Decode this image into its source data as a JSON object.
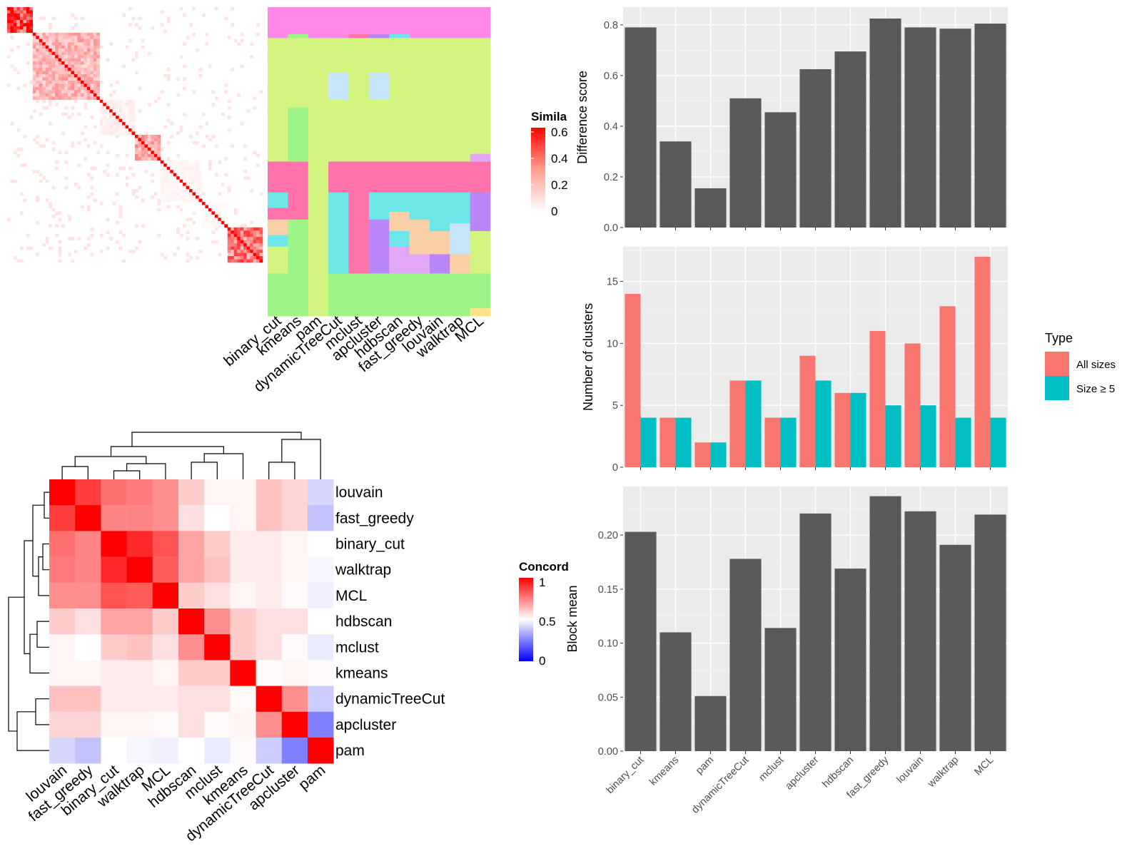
{
  "palette": {
    "panel_bg": "#EBEBEB",
    "grid": "#FFFFFF",
    "bar_dark": "#595959",
    "all_sizes": "#F8766D",
    "size_ge5": "#00BFC4",
    "heat_high": "#FF0000",
    "heat_low": "#0000FF"
  },
  "chart_data": [
    {
      "id": "similarity_heatmap",
      "type": "heatmap",
      "legend_title": "Simila",
      "legend_ticks": [
        "0.6",
        "0.4",
        "0.2",
        "0"
      ],
      "legend_range": [
        0,
        0.62
      ],
      "n_cells": 80,
      "blocks": [
        {
          "start": 0,
          "end": 8,
          "level": 0.55
        },
        {
          "start": 8,
          "end": 29,
          "level": 0.22
        },
        {
          "start": 29,
          "end": 40,
          "level": 0.05
        },
        {
          "start": 40,
          "end": 48,
          "level": 0.25
        },
        {
          "start": 48,
          "end": 61,
          "level": 0.03
        },
        {
          "start": 61,
          "end": 69,
          "level": 0.02
        },
        {
          "start": 69,
          "end": 80,
          "level": 0.4
        }
      ],
      "diagonal": 0.62
    },
    {
      "id": "cluster_assignment",
      "type": "heatmap",
      "x_labels": [
        "binary_cut",
        "kmeans",
        "pam",
        "dynamicTreeCut",
        "mclust",
        "apcluster",
        "hdbscan",
        "fast_greedy",
        "louvain",
        "walktrap",
        "MCL"
      ],
      "cluster_colors": [
        "#FF88E8",
        "#D3F57F",
        "#9EF587",
        "#FF72AA",
        "#6CE6E6",
        "#C6E5FA",
        "#B985F7",
        "#F9CFA8",
        "#E1A8F7",
        "#FFE58A"
      ]
    },
    {
      "id": "difference_score",
      "type": "bar",
      "categories": [
        "binary_cut",
        "kmeans",
        "pam",
        "dynamicTreeCut",
        "mclust",
        "apcluster",
        "hdbscan",
        "fast_greedy",
        "louvain",
        "walktrap",
        "MCL"
      ],
      "values": [
        0.79,
        0.34,
        0.155,
        0.51,
        0.455,
        0.625,
        0.695,
        0.825,
        0.79,
        0.785,
        0.805
      ],
      "ylabel": "Difference score",
      "ylim": [
        0,
        0.87
      ],
      "yticks": [
        0.0,
        0.2,
        0.4,
        0.6,
        0.8
      ],
      "ytick_labels": [
        "0.0",
        "0.2",
        "0.4",
        "0.6",
        "0.8"
      ]
    },
    {
      "id": "number_of_clusters",
      "type": "bar",
      "categories": [
        "binary_cut",
        "kmeans",
        "pam",
        "dynamicTreeCut",
        "mclust",
        "apcluster",
        "hdbscan",
        "fast_greedy",
        "louvain",
        "walktrap",
        "MCL"
      ],
      "series": [
        {
          "name": "All sizes",
          "values": [
            14,
            4,
            2,
            7,
            4,
            9,
            6,
            11,
            10,
            13,
            17
          ]
        },
        {
          "name": "Size ≥ 5",
          "values": [
            4,
            4,
            2,
            7,
            4,
            7,
            6,
            5,
            5,
            4,
            4
          ]
        }
      ],
      "ylabel": "Number of clusters",
      "ylim": [
        0,
        17.8
      ],
      "yticks": [
        0,
        5,
        10,
        15
      ],
      "ytick_labels": [
        "0",
        "5",
        "10",
        "15"
      ],
      "legend": {
        "title": "Type",
        "position": "right"
      }
    },
    {
      "id": "block_mean",
      "type": "bar",
      "categories": [
        "binary_cut",
        "kmeans",
        "pam",
        "dynamicTreeCut",
        "mclust",
        "apcluster",
        "hdbscan",
        "fast_greedy",
        "louvain",
        "walktrap",
        "MCL"
      ],
      "values": [
        0.203,
        0.11,
        0.051,
        0.178,
        0.114,
        0.22,
        0.169,
        0.236,
        0.222,
        0.191,
        0.219
      ],
      "ylabel": "Block mean",
      "ylim": [
        0,
        0.245
      ],
      "yticks": [
        0.0,
        0.05,
        0.1,
        0.15,
        0.2
      ],
      "ytick_labels": [
        "0.00",
        "0.05",
        "0.10",
        "0.15",
        "0.20"
      ]
    },
    {
      "id": "concordance_heatmap",
      "type": "heatmap",
      "legend_title": "Concord",
      "legend_ticks": [
        "1",
        "0.5",
        "0"
      ],
      "legend_range": [
        0,
        1
      ],
      "labels": [
        "louvain",
        "fast_greedy",
        "binary_cut",
        "walktrap",
        "MCL",
        "hdbscan",
        "mclust",
        "kmeans",
        "dynamicTreeCut",
        "apcluster",
        "pam"
      ],
      "matrix": [
        [
          1.0,
          0.88,
          0.78,
          0.76,
          0.72,
          0.6,
          0.52,
          0.52,
          0.62,
          0.58,
          0.42
        ],
        [
          0.88,
          1.0,
          0.74,
          0.74,
          0.72,
          0.56,
          0.5,
          0.52,
          0.62,
          0.58,
          0.38
        ],
        [
          0.78,
          0.74,
          1.0,
          0.92,
          0.84,
          0.68,
          0.6,
          0.54,
          0.54,
          0.52,
          0.5
        ],
        [
          0.76,
          0.74,
          0.92,
          1.0,
          0.82,
          0.68,
          0.62,
          0.54,
          0.54,
          0.52,
          0.48
        ],
        [
          0.72,
          0.72,
          0.84,
          0.82,
          1.0,
          0.6,
          0.56,
          0.52,
          0.54,
          0.51,
          0.47
        ],
        [
          0.6,
          0.56,
          0.68,
          0.68,
          0.6,
          1.0,
          0.72,
          0.6,
          0.56,
          0.56,
          0.5
        ],
        [
          0.52,
          0.5,
          0.6,
          0.62,
          0.56,
          0.72,
          1.0,
          0.6,
          0.56,
          0.51,
          0.46
        ],
        [
          0.52,
          0.52,
          0.54,
          0.54,
          0.52,
          0.6,
          0.6,
          1.0,
          0.51,
          0.52,
          0.51
        ],
        [
          0.62,
          0.62,
          0.54,
          0.54,
          0.54,
          0.56,
          0.56,
          0.51,
          1.0,
          0.72,
          0.4
        ],
        [
          0.58,
          0.58,
          0.52,
          0.52,
          0.51,
          0.56,
          0.51,
          0.52,
          0.72,
          1.0,
          0.25
        ],
        [
          0.42,
          0.38,
          0.5,
          0.48,
          0.47,
          0.5,
          0.46,
          0.51,
          0.4,
          0.25,
          1.0
        ]
      ]
    }
  ]
}
